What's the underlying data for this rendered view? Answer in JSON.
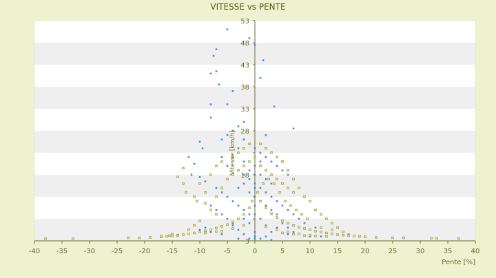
{
  "colors": {
    "background": "#eef2cf",
    "plot_band_light": "#ffffff",
    "plot_band_dark": "#efefef",
    "axis": "#6b6b2a",
    "text": "#6b6b2a",
    "series_blue": "#3a8fd9",
    "series_olive": "#8a8a1e"
  },
  "chart_data": {
    "type": "scatter",
    "title": "VITESSE vs PENTE",
    "xlabel": "Pente [%]",
    "ylabel": "Vitesse [km/h]",
    "xlim": [
      -40,
      40
    ],
    "ylim": [
      3,
      53
    ],
    "x_ticks": [
      "-40",
      "-35",
      "-30",
      "-25",
      "-20",
      "-15",
      "-10",
      "-5",
      "0",
      "5",
      "10",
      "15",
      "20",
      "25",
      "30",
      "35",
      "40"
    ],
    "y_ticks": [
      "3",
      "8",
      "13",
      "18",
      "23",
      "28",
      "33",
      "38",
      "43",
      "48",
      "53"
    ],
    "y_tick_labels_shown": [
      "3",
      "18",
      "28",
      "33",
      "38",
      "43",
      "48",
      "53"
    ],
    "grid": "horizontal alternating bands",
    "legend": "none",
    "series": [
      {
        "color": "blue",
        "points": [
          [
            -5,
            51
          ],
          [
            -7,
            46.5
          ],
          [
            -7.5,
            45
          ],
          [
            -8,
            41
          ],
          [
            -7,
            41.5
          ],
          [
            -6.5,
            38.5
          ],
          [
            -4,
            37
          ],
          [
            -5,
            34
          ],
          [
            -8,
            34
          ],
          [
            -8,
            31
          ],
          [
            -10,
            25.5
          ],
          [
            -9.5,
            24
          ],
          [
            -12,
            22
          ],
          [
            -11,
            20.5
          ],
          [
            -11.5,
            18
          ],
          [
            -10,
            17.5
          ],
          [
            -9,
            16.5
          ],
          [
            -7,
            15
          ],
          [
            -6,
            14
          ],
          [
            -5,
            13
          ],
          [
            -4,
            12
          ],
          [
            -3,
            11
          ],
          [
            -2,
            10
          ],
          [
            -1,
            9
          ],
          [
            -6,
            26
          ],
          [
            -5,
            27
          ],
          [
            -4,
            28
          ],
          [
            -3,
            29
          ],
          [
            -2,
            26
          ],
          [
            -1,
            25
          ],
          [
            0,
            24
          ],
          [
            1,
            23
          ],
          [
            2,
            22
          ],
          [
            3,
            21
          ],
          [
            4,
            20
          ],
          [
            5,
            19
          ],
          [
            6,
            18
          ],
          [
            7,
            17
          ],
          [
            1.5,
            44
          ],
          [
            1,
            40
          ],
          [
            3.5,
            33.5
          ],
          [
            7,
            28.5
          ],
          [
            2,
            27
          ],
          [
            0,
            47.5
          ],
          [
            -1,
            49
          ],
          [
            -2,
            30
          ],
          [
            -3,
            24
          ],
          [
            -4,
            22
          ],
          [
            -5,
            20
          ],
          [
            -6,
            22
          ],
          [
            0,
            3.5
          ],
          [
            0,
            4
          ],
          [
            0,
            5
          ],
          [
            -1,
            3.5
          ],
          [
            1,
            3.5
          ],
          [
            2,
            4
          ],
          [
            -2,
            4.5
          ],
          [
            3,
            5
          ],
          [
            -3,
            5.5
          ],
          [
            4,
            6
          ],
          [
            -4,
            6.5
          ],
          [
            5,
            7
          ],
          [
            -2,
            18
          ],
          [
            -1,
            19
          ],
          [
            0,
            20
          ],
          [
            1,
            18
          ],
          [
            2,
            17
          ],
          [
            3,
            16
          ],
          [
            -1,
            14
          ],
          [
            0,
            13
          ],
          [
            1,
            12
          ],
          [
            2,
            11
          ],
          [
            3,
            10
          ],
          [
            4,
            9
          ],
          [
            -3,
            15
          ],
          [
            -2,
            16
          ],
          [
            -1,
            17
          ],
          [
            0,
            16
          ],
          [
            1,
            15
          ],
          [
            2,
            14
          ],
          [
            3,
            13
          ],
          [
            4,
            12
          ],
          [
            5,
            11
          ],
          [
            6,
            10
          ],
          [
            7,
            9
          ],
          [
            8,
            8
          ],
          [
            -1,
            21
          ],
          [
            0,
            22
          ],
          [
            1,
            21
          ],
          [
            -2,
            21
          ],
          [
            0,
            18
          ],
          [
            0,
            15
          ],
          [
            0,
            11
          ],
          [
            0,
            9
          ],
          [
            1,
            8
          ],
          [
            -1,
            7
          ],
          [
            2,
            6.5
          ],
          [
            -2,
            8
          ],
          [
            8,
            6
          ],
          [
            10,
            5.5
          ],
          [
            12,
            5
          ],
          [
            9,
            7
          ],
          [
            11,
            6
          ],
          [
            6,
            6
          ],
          [
            7,
            5
          ],
          [
            -6,
            9
          ],
          [
            -7,
            10
          ],
          [
            -8,
            11
          ],
          [
            -5,
            8
          ],
          [
            -4,
            7
          ],
          [
            12,
            4
          ],
          [
            14,
            4.5
          ],
          [
            10,
            4
          ],
          [
            -8,
            5
          ],
          [
            -10,
            5.5
          ],
          [
            -9,
            6
          ],
          [
            17,
            4.5
          ],
          [
            19,
            4
          ],
          [
            -3,
            3.5
          ],
          [
            3,
            3.2
          ],
          [
            -6,
            4.5
          ],
          [
            6,
            4.5
          ]
        ]
      },
      {
        "color": "olive",
        "points": [
          [
            -38,
            3.5
          ],
          [
            -33,
            3.5
          ],
          [
            -23,
            3.7
          ],
          [
            -21,
            3.7
          ],
          [
            -19,
            3.8
          ],
          [
            -17,
            3.9
          ],
          [
            -16,
            4
          ],
          [
            -15.5,
            4.2
          ],
          [
            -15,
            4.1
          ],
          [
            -14,
            4.3
          ],
          [
            -13,
            4.4
          ],
          [
            -12,
            4.6
          ],
          [
            -11,
            4.8
          ],
          [
            -10,
            5
          ],
          [
            -9,
            5.3
          ],
          [
            -8,
            5.5
          ],
          [
            -7,
            5.9
          ],
          [
            -6,
            6.3
          ],
          [
            -5,
            6.7
          ],
          [
            -4,
            7.3
          ],
          [
            -3,
            8
          ],
          [
            -2,
            9
          ],
          [
            -1,
            10.5
          ],
          [
            -0.5,
            12
          ],
          [
            37,
            3.5
          ],
          [
            33,
            3.6
          ],
          [
            32,
            3.6
          ],
          [
            27,
            3.7
          ],
          [
            25,
            3.7
          ],
          [
            22,
            3.8
          ],
          [
            20,
            3.9
          ],
          [
            19,
            4
          ],
          [
            18,
            4.1
          ],
          [
            17,
            4.2
          ],
          [
            16,
            4.3
          ],
          [
            15,
            4.4
          ],
          [
            14,
            4.6
          ],
          [
            13,
            4.8
          ],
          [
            12,
            5
          ],
          [
            11,
            5.2
          ],
          [
            10,
            5.5
          ],
          [
            9,
            5.8
          ],
          [
            8,
            6.1
          ],
          [
            7,
            6.5
          ],
          [
            6,
            7
          ],
          [
            5,
            7.6
          ],
          [
            4,
            8.3
          ],
          [
            3,
            9.2
          ],
          [
            2,
            10.5
          ],
          [
            1,
            12
          ],
          [
            0.5,
            14
          ],
          [
            1.5,
            16
          ],
          [
            2.5,
            17
          ],
          [
            3.5,
            16
          ],
          [
            4.5,
            14
          ],
          [
            5.5,
            12
          ],
          [
            6.5,
            11
          ],
          [
            7.5,
            10
          ],
          [
            8.5,
            9
          ],
          [
            9.5,
            8
          ],
          [
            -13,
            19.5
          ],
          [
            -14,
            17.5
          ],
          [
            -13,
            16
          ],
          [
            -12.5,
            14
          ],
          [
            -11,
            13
          ],
          [
            -10.5,
            12
          ],
          [
            -9,
            11.5
          ],
          [
            -8,
            10
          ],
          [
            -7,
            9
          ],
          [
            -9,
            14
          ],
          [
            -10,
            16
          ],
          [
            -8,
            18
          ],
          [
            -7,
            20
          ],
          [
            -6,
            21
          ],
          [
            -4,
            22
          ],
          [
            -3,
            23
          ],
          [
            -2,
            24
          ],
          [
            -1,
            25
          ],
          [
            1,
            25
          ],
          [
            2,
            24
          ],
          [
            3,
            23
          ],
          [
            4,
            22
          ],
          [
            5,
            21
          ],
          [
            6,
            19
          ],
          [
            7,
            17
          ],
          [
            8,
            15
          ],
          [
            9,
            13
          ],
          [
            10,
            12
          ],
          [
            11,
            10
          ],
          [
            12,
            9
          ],
          [
            13,
            8
          ],
          [
            14,
            7
          ],
          [
            15,
            6
          ],
          [
            -5,
            17
          ],
          [
            -6,
            15
          ],
          [
            -7,
            13
          ],
          [
            -15,
            4.5
          ],
          [
            -12,
            5.5
          ],
          [
            -11,
            6.5
          ],
          [
            -10,
            7.5
          ],
          [
            -6,
            5.2
          ],
          [
            -4,
            5.8
          ],
          [
            -2,
            6.5
          ],
          [
            2,
            6.2
          ],
          [
            4,
            5.5
          ],
          [
            6,
            5
          ],
          [
            8,
            4.6
          ],
          [
            10,
            4.3
          ],
          [
            -3,
            19
          ],
          [
            -2,
            20
          ],
          [
            -1,
            21
          ],
          [
            0,
            22
          ],
          [
            1,
            20
          ],
          [
            2,
            19
          ],
          [
            3,
            18
          ],
          [
            4,
            17
          ],
          [
            5,
            16
          ],
          [
            6,
            15
          ],
          [
            7,
            14
          ],
          [
            -4,
            18
          ],
          [
            12,
            6
          ],
          [
            14,
            5.5
          ],
          [
            16,
            5
          ],
          [
            -14,
            4.2
          ],
          [
            -9,
            4.8
          ],
          [
            -7,
            5.1
          ],
          [
            5,
            4.8
          ],
          [
            7,
            4.5
          ],
          [
            9,
            4.2
          ],
          [
            11,
            4.1
          ],
          [
            13,
            4
          ],
          [
            -17,
            4.1
          ]
        ]
      }
    ]
  }
}
